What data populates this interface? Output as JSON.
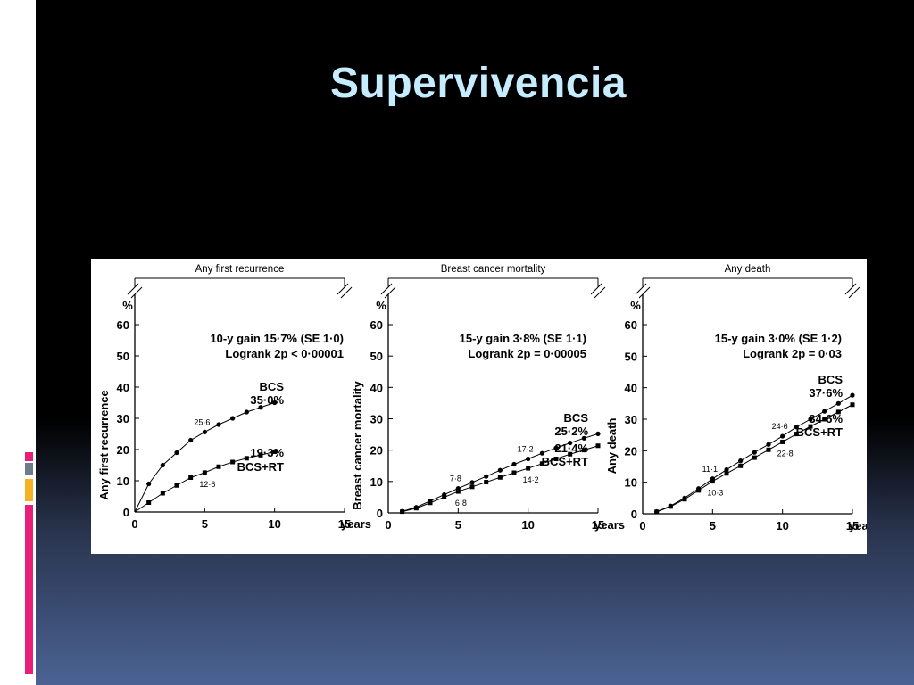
{
  "slide": {
    "title": "Supervivencia",
    "accent_colors": [
      "#e91e78",
      "#6d7b8d",
      "#f5b324",
      "#e91e78"
    ]
  },
  "chart_data": [
    {
      "type": "line",
      "title": "Any first recurrence",
      "ylabel": "Any first recurrence",
      "yunit": "%",
      "xlabel": "years",
      "xlim": [
        0,
        15
      ],
      "ylim": [
        0,
        60
      ],
      "xticks": [
        0,
        5,
        10,
        15
      ],
      "yticks": [
        0,
        10,
        20,
        30,
        40,
        50,
        60
      ],
      "annotation": [
        "10-y gain 15·7% (SE 1·0)",
        "Logrank 2p < 0·00001"
      ],
      "series": [
        {
          "name": "BCS",
          "end_label": "35·0%",
          "marker": "circle",
          "x": [
            0,
            1,
            2,
            3,
            4,
            5,
            6,
            7,
            8,
            9,
            10
          ],
          "y": [
            0,
            9,
            15,
            19,
            23,
            25.6,
            28,
            30,
            32,
            33.5,
            35.0
          ]
        },
        {
          "name": "BCS+RT",
          "end_label": "19·3%",
          "marker": "square",
          "x": [
            0,
            1,
            2,
            3,
            4,
            5,
            6,
            7,
            8,
            9,
            10
          ],
          "y": [
            0,
            3,
            6,
            8.5,
            11,
            12.6,
            14.5,
            16,
            17.2,
            18.2,
            19.3
          ]
        }
      ],
      "point_labels": [
        {
          "x": 5,
          "y": 25.6,
          "text": "25·6"
        },
        {
          "x": 5,
          "y": 12.6,
          "text": "12·6"
        }
      ]
    },
    {
      "type": "line",
      "title": "Breast cancer mortality",
      "ylabel": "Breast cancer mortality",
      "yunit": "%",
      "xlabel": "years",
      "xlim": [
        0,
        15
      ],
      "ylim": [
        0,
        60
      ],
      "xticks": [
        0,
        5,
        10,
        15
      ],
      "yticks": [
        0,
        10,
        20,
        30,
        40,
        50,
        60
      ],
      "annotation": [
        "15-y gain 3·8% (SE 1·1)",
        "Logrank 2p = 0·00005"
      ],
      "series": [
        {
          "name": "BCS",
          "end_label": "25·2%",
          "marker": "circle",
          "x": [
            1,
            2,
            3,
            4,
            5,
            6,
            7,
            8,
            9,
            10,
            11,
            12,
            13,
            14,
            15
          ],
          "y": [
            0.5,
            1.8,
            3.8,
            5.8,
            7.8,
            9.7,
            11.6,
            13.6,
            15.5,
            17.2,
            19.0,
            20.7,
            22.3,
            23.8,
            25.2
          ]
        },
        {
          "name": "BCS+RT",
          "end_label": "21·4%",
          "marker": "square",
          "x": [
            1,
            2,
            3,
            4,
            5,
            6,
            7,
            8,
            9,
            10,
            11,
            12,
            13,
            14,
            15
          ],
          "y": [
            0.4,
            1.5,
            3.2,
            5.0,
            6.8,
            8.3,
            9.8,
            11.3,
            12.8,
            14.2,
            15.7,
            17.2,
            18.7,
            20.0,
            21.4
          ]
        }
      ],
      "point_labels": [
        {
          "x": 5,
          "y": 7.8,
          "text": "7·8"
        },
        {
          "x": 5,
          "y": 6.8,
          "text": "6·8"
        },
        {
          "x": 10,
          "y": 17.2,
          "text": "17·2"
        },
        {
          "x": 10,
          "y": 14.2,
          "text": "14·2"
        }
      ]
    },
    {
      "type": "line",
      "title": "Any death",
      "ylabel": "Any death",
      "yunit": "%",
      "xlabel": "years",
      "xlim": [
        0,
        15
      ],
      "ylim": [
        0,
        60
      ],
      "xticks": [
        0,
        5,
        10,
        15
      ],
      "yticks": [
        0,
        10,
        20,
        30,
        40,
        50,
        60
      ],
      "annotation": [
        "15-y gain 3·0% (SE 1·2)",
        "Logrank 2p = 0·03"
      ],
      "series": [
        {
          "name": "BCS",
          "end_label": "37·6%",
          "marker": "circle",
          "x": [
            1,
            2,
            3,
            4,
            5,
            6,
            7,
            8,
            9,
            10,
            11,
            12,
            13,
            14,
            15
          ],
          "y": [
            0.7,
            2.5,
            5.0,
            8.0,
            11.1,
            14.0,
            16.8,
            19.5,
            22.0,
            24.6,
            27.5,
            30.0,
            32.5,
            35.0,
            37.6
          ]
        },
        {
          "name": "BCS+RT",
          "end_label": "34·6%",
          "marker": "square",
          "x": [
            1,
            2,
            3,
            4,
            5,
            6,
            7,
            8,
            9,
            10,
            11,
            12,
            13,
            14,
            15
          ],
          "y": [
            0.6,
            2.3,
            4.6,
            7.4,
            10.3,
            12.8,
            15.2,
            17.8,
            20.3,
            22.8,
            25.3,
            27.7,
            30.0,
            32.3,
            34.6
          ]
        }
      ],
      "point_labels": [
        {
          "x": 5,
          "y": 11.1,
          "text": "11·1"
        },
        {
          "x": 5,
          "y": 10.3,
          "text": "10·3"
        },
        {
          "x": 10,
          "y": 24.6,
          "text": "24·6"
        },
        {
          "x": 10,
          "y": 22.8,
          "text": "22·8"
        }
      ]
    }
  ]
}
